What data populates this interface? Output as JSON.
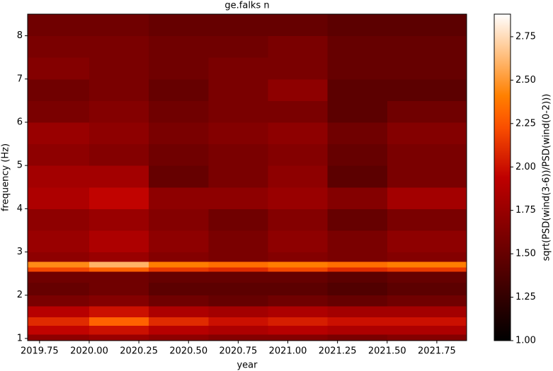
{
  "chart_data": {
    "type": "heatmap",
    "title": "ge.falks n",
    "xlabel": "year",
    "ylabel": "frequency (Hz)",
    "colorbar_label": "sqrt(PSD(wind(3-6))/PSD(wind(0-2)))",
    "colormap": "gist_heat",
    "x_edges": [
      2019.69,
      2020.0,
      2020.3,
      2020.6,
      2020.9,
      2021.2,
      2021.5,
      2021.9
    ],
    "y_edges": [
      0.95,
      1.1,
      1.3,
      1.5,
      1.75,
      2.0,
      2.3,
      2.55,
      2.65,
      2.78,
      3.0,
      3.5,
      4.0,
      4.5,
      5.0,
      5.5,
      6.0,
      6.5,
      7.0,
      7.5,
      8.0,
      8.5
    ],
    "values": [
      [
        1.7,
        1.75,
        1.7,
        1.65,
        1.65,
        1.6,
        1.65
      ],
      [
        1.95,
        2.0,
        1.9,
        1.85,
        1.9,
        1.85,
        1.85
      ],
      [
        2.1,
        2.3,
        2.1,
        2.0,
        2.05,
        2.0,
        2.0
      ],
      [
        1.9,
        2.0,
        1.85,
        1.8,
        1.85,
        1.8,
        1.8
      ],
      [
        1.6,
        1.65,
        1.55,
        1.5,
        1.55,
        1.5,
        1.55
      ],
      [
        1.5,
        1.55,
        1.45,
        1.45,
        1.45,
        1.4,
        1.45
      ],
      [
        1.55,
        1.55,
        1.5,
        1.5,
        1.5,
        1.45,
        1.5
      ],
      [
        2.2,
        2.3,
        2.15,
        2.1,
        2.2,
        2.1,
        2.15
      ],
      [
        2.45,
        2.6,
        2.4,
        2.35,
        2.4,
        2.35,
        2.4
      ],
      [
        1.7,
        1.75,
        1.65,
        1.6,
        1.65,
        1.6,
        1.65
      ],
      [
        1.75,
        1.85,
        1.7,
        1.6,
        1.7,
        1.6,
        1.7
      ],
      [
        1.7,
        1.75,
        1.65,
        1.55,
        1.65,
        1.5,
        1.6
      ],
      [
        1.85,
        1.95,
        1.7,
        1.7,
        1.75,
        1.65,
        1.8
      ],
      [
        1.8,
        1.8,
        1.5,
        1.6,
        1.7,
        1.45,
        1.6
      ],
      [
        1.7,
        1.65,
        1.55,
        1.6,
        1.65,
        1.5,
        1.6
      ],
      [
        1.75,
        1.7,
        1.6,
        1.65,
        1.7,
        1.55,
        1.65
      ],
      [
        1.6,
        1.65,
        1.55,
        1.6,
        1.6,
        1.45,
        1.55
      ],
      [
        1.55,
        1.6,
        1.5,
        1.6,
        1.7,
        1.45,
        1.45
      ],
      [
        1.65,
        1.6,
        1.55,
        1.6,
        1.6,
        1.5,
        1.5
      ],
      [
        1.6,
        1.6,
        1.55,
        1.55,
        1.6,
        1.5,
        1.5
      ],
      [
        1.55,
        1.55,
        1.5,
        1.5,
        1.5,
        1.45,
        1.45
      ]
    ],
    "xlim": [
      2019.69,
      2021.9
    ],
    "xticks": [
      2019.75,
      {
        "value": 2020,
        "label": "2020.00"
      },
      2020.25,
      {
        "value": 2020.5,
        "label": "2020.50"
      },
      2020.75,
      {
        "value": 2021,
        "label": "2021.00"
      },
      2021.25,
      {
        "value": 2021.5,
        "label": "2021.50"
      },
      2021.75
    ],
    "ylim": [
      0.95,
      8.5
    ],
    "yticks": [
      1,
      2,
      3,
      4,
      5,
      6,
      7,
      8
    ],
    "clim": [
      1.0,
      2.88
    ],
    "cticks": [
      {
        "value": 1,
        "label": "1.00"
      },
      1.25,
      {
        "value": 1.5,
        "label": "1.50"
      },
      1.75,
      {
        "value": 2,
        "label": "2.00"
      },
      2.25,
      {
        "value": 2.5,
        "label": "2.50"
      },
      2.75
    ]
  }
}
